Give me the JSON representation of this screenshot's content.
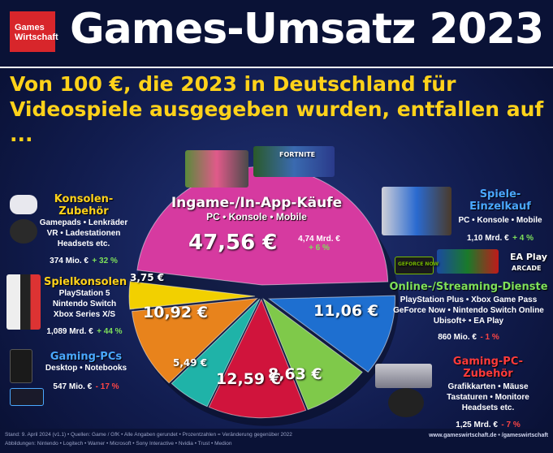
{
  "header": {
    "logo_line1": "Games",
    "logo_line2": "Wirtschaft",
    "title": "Games-Umsatz 2023",
    "subtitle_line1": "Von 100 €, die 2023 in Deutschland für",
    "subtitle_line2": "Videospiele ausgegeben wurden, entfallen auf ..."
  },
  "chart_data": {
    "type": "pie",
    "title": "Games-Umsatz 2023",
    "unit": "€",
    "slices": [
      {
        "name": "Ingame-/In-App-Käufe",
        "value": 47.56,
        "label": "47,56 €",
        "color": "#d63aa0"
      },
      {
        "name": "Spiele-Einzelkauf",
        "value": 11.06,
        "label": "11,06 €",
        "color": "#1e6fd0"
      },
      {
        "name": "Online-/Streaming-Dienste",
        "value": 8.63,
        "label": "8,63 €",
        "color": "#7fc94a"
      },
      {
        "name": "Gaming-PC-Zubehör",
        "value": 12.59,
        "label": "12,59 €",
        "color": "#d0143c"
      },
      {
        "name": "Gaming-PCs",
        "value": 5.49,
        "label": "5,49 €",
        "color": "#1fb3a8"
      },
      {
        "name": "Spielkonsolen",
        "value": 10.92,
        "label": "10,92 €",
        "color": "#e8831c"
      },
      {
        "name": "Konsolen-Zubehör",
        "value": 3.75,
        "label": "3,75 €",
        "color": "#f2d000"
      }
    ]
  },
  "categories": {
    "ingame": {
      "name": "Ingame-/In-App-Käufe",
      "desc": "PC • Konsole • Mobile",
      "value": "47,56 €",
      "amount": "4,74 Mrd. €",
      "change": "+ 6 %"
    },
    "konsolenzubehoer": {
      "name": "Konsolen-Zubehör",
      "desc1": "Gamepads • Lenkräder",
      "desc2": "VR • Ladestationen",
      "desc3": "Headsets etc.",
      "amount": "374 Mio. €",
      "change": "+ 32 %"
    },
    "spielkonsolen": {
      "name": "Spielkonsolen",
      "desc1": "PlayStation 5",
      "desc2": "Nintendo Switch",
      "desc3": "Xbox Series X/S",
      "amount": "1,089 Mrd. €",
      "change": "+ 44 %"
    },
    "gamingpcs": {
      "name": "Gaming-PCs",
      "desc1": "Desktop • Notebooks",
      "amount": "547 Mio. €",
      "change": "- 17 %"
    },
    "einzelkauf": {
      "name": "Spiele-Einzelkauf",
      "desc1": "PC • Konsole • Mobile",
      "amount": "1,10 Mrd. €",
      "change": "+ 4 %"
    },
    "online": {
      "name": "Online-/Streaming-Dienste",
      "desc1": "PlayStation Plus • Xbox Game Pass",
      "desc2": "GeForce Now • Nintendo Switch Online",
      "desc3": "Ubisoft+ • EA Play",
      "amount": "860 Mio. €",
      "change": "- 1 %"
    },
    "pczubehoer": {
      "name": "Gaming-PC-Zubehör",
      "desc1": "Grafikkarten • Mäuse",
      "desc2": "Tastaturen • Monitore",
      "desc3": "Headsets etc.",
      "amount": "1,25 Mrd. €",
      "change": "- 7 %"
    }
  },
  "footer": {
    "line1": "Stand: 9. April 2024 (v1.1) • Quellen: Game / GfK • Alle Angaben gerundet • Prozentzahlen = Veränderung gegenüber 2022",
    "line2": "Abbildungen: Nintendo • Logitech • Warner • Microsoft • Sony Interactive • Nvidia • Trust • Medion",
    "right": "www.gameswirtschaft.de • /gameswirtschaft"
  },
  "product_labels": {
    "fortnite": "FORTNITE",
    "geforce_now": "GEFORCE NOW",
    "ea_play": "EA Play",
    "arcade": "ARCADE"
  }
}
